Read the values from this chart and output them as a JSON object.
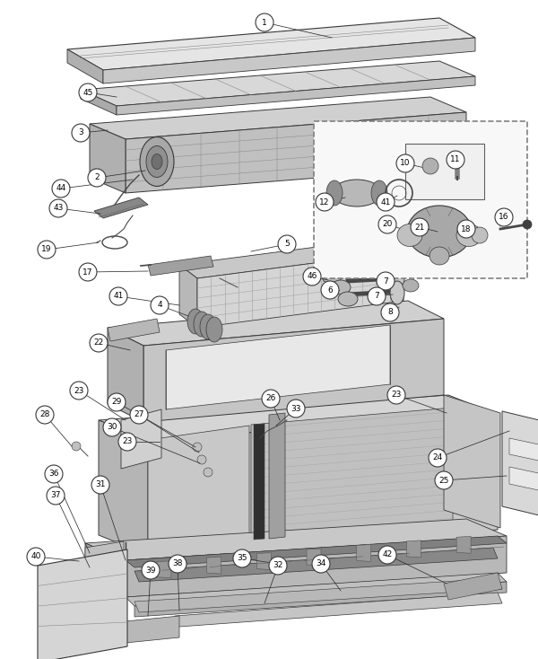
{
  "bg_color": "#ffffff",
  "lc": "#383838",
  "mg": "#888888",
  "lg": "#c8c8c8",
  "dg": "#484848",
  "fig_w": 6.0,
  "fig_h": 7.34,
  "dpi": 100
}
